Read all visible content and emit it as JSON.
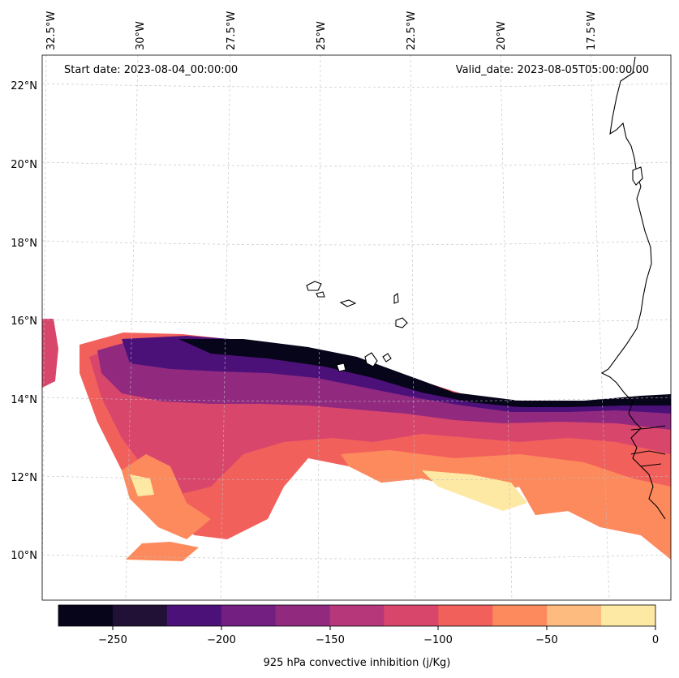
{
  "map": {
    "start_date": "Start date: 2023-08-04_00:00:00",
    "valid_date": "Valid_date: 2023-08-05T05:00:00.00",
    "lon_labels": [
      "32.5°W",
      "30°W",
      "27.5°W",
      "25°W",
      "22.5°W",
      "20°W",
      "17.5°W"
    ],
    "lat_labels": [
      "22°N",
      "20°N",
      "18°N",
      "16°N",
      "14°N",
      "12°N",
      "10°N"
    ]
  },
  "colorbar": {
    "label": "925 hPa convective inhibition (j/Kg)",
    "ticks": [
      "−250",
      "−200",
      "−150",
      "−100",
      "−50",
      "0"
    ],
    "colors": [
      "#07051a",
      "#221137",
      "#4c1179",
      "#721f81",
      "#912a7f",
      "#b6377a",
      "#d9466b",
      "#f2605c",
      "#fd8a5c",
      "#febb7f",
      "#fde8a4"
    ]
  }
}
